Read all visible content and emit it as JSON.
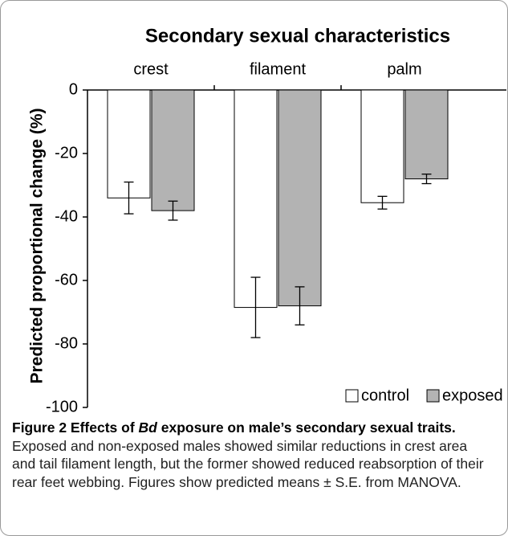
{
  "chart_data": {
    "type": "bar",
    "title": "Secondary sexual characteristics",
    "ylabel": "Predicted proportional change (%)",
    "categories": [
      "crest",
      "filament",
      "palm"
    ],
    "series": [
      {
        "name": "control",
        "color": "#ffffff",
        "values": [
          -34,
          -68.5,
          -35.5
        ],
        "errors": [
          5,
          9.5,
          2
        ]
      },
      {
        "name": "exposed",
        "color": "#b3b3b3",
        "values": [
          -38,
          -68,
          -28
        ],
        "errors": [
          3,
          6,
          1.5
        ]
      }
    ],
    "ylim": [
      -100,
      0
    ],
    "yticks": [
      0,
      -20,
      -40,
      -60,
      -80,
      -100
    ],
    "legend": "lower right"
  },
  "caption": {
    "title": [
      "Figure 2 Effects of",
      "Bd",
      "exposure on male’s secondary sexual traits."
    ],
    "text": "Exposed and non-exposed males showed similar reductions in crest area and tail filament length, but the former showed reduced reabsorption of their rear feet webbing. Figures show predicted means ± S.E. from MANOVA."
  }
}
